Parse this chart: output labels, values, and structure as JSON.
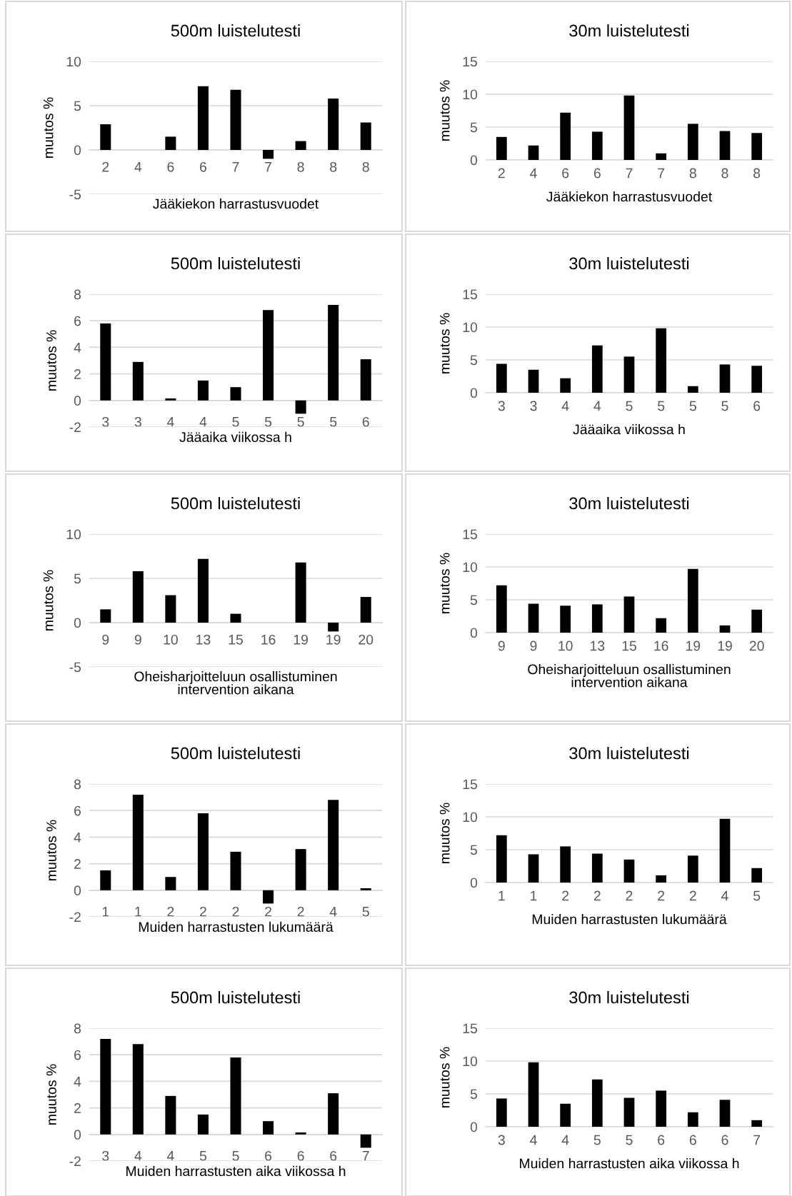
{
  "chart_data": [
    {
      "type": "bar",
      "title": "500m luistelutesti",
      "xlabel": "Jääkiekon harrastusvuodet",
      "ylabel": "muutos %",
      "categories": [
        "2",
        "4",
        "6",
        "6",
        "7",
        "7",
        "8",
        "8",
        "8"
      ],
      "values": [
        2.9,
        0,
        1.5,
        7.2,
        6.8,
        -1.0,
        1.0,
        5.8,
        3.1
      ],
      "color": "#000000",
      "ylim": [
        -5,
        10
      ],
      "yticks": [
        -5,
        0,
        5,
        10
      ],
      "grid": "y"
    },
    {
      "type": "bar",
      "title": "30m luistelutesti",
      "xlabel": "Jääkiekon harrastusvuodet",
      "ylabel": "muutos %",
      "categories": [
        "2",
        "4",
        "6",
        "6",
        "7",
        "7",
        "8",
        "8",
        "8"
      ],
      "values": [
        3.5,
        2.2,
        7.2,
        4.3,
        9.8,
        1.0,
        5.5,
        4.4,
        4.1
      ],
      "color": "#000000",
      "ylim": [
        0,
        15
      ],
      "yticks": [
        0,
        5,
        10,
        15
      ],
      "grid": "y"
    },
    {
      "type": "bar",
      "title": "500m luistelutesti",
      "xlabel": "Jääaika viikossa h",
      "ylabel": "muutos %",
      "categories": [
        "3",
        "3",
        "4",
        "4",
        "5",
        "5",
        "5",
        "5",
        "6"
      ],
      "values": [
        5.8,
        2.9,
        0.15,
        1.5,
        1.0,
        6.8,
        -1.0,
        7.2,
        3.1
      ],
      "color": "#000000",
      "ylim": [
        -2,
        8
      ],
      "yticks": [
        -2,
        0,
        2,
        4,
        6,
        8
      ],
      "grid": "y"
    },
    {
      "type": "bar",
      "title": "30m luistelutesti",
      "xlabel": "Jääaika viikossa h",
      "ylabel": "muutos %",
      "categories": [
        "3",
        "3",
        "4",
        "4",
        "5",
        "5",
        "5",
        "5",
        "6"
      ],
      "values": [
        4.4,
        3.5,
        2.2,
        7.2,
        5.5,
        9.8,
        1.0,
        4.3,
        4.1
      ],
      "color": "#000000",
      "ylim": [
        0,
        15
      ],
      "yticks": [
        0,
        5,
        10,
        15
      ],
      "grid": "y"
    },
    {
      "type": "bar",
      "title": "500m luistelutesti",
      "xlabel": "Oheisharjoitteluun osallistuminen\nintervention aikana",
      "ylabel": "muutos %",
      "categories": [
        "9",
        "9",
        "10",
        "13",
        "15",
        "16",
        "19",
        "19",
        "20"
      ],
      "values": [
        1.5,
        5.8,
        3.1,
        7.2,
        1.0,
        0,
        6.8,
        -1.0,
        2.9
      ],
      "color": "#000000",
      "ylim": [
        -5,
        10
      ],
      "yticks": [
        -5,
        0,
        5,
        10
      ],
      "grid": "y"
    },
    {
      "type": "bar",
      "title": "30m luistelutesti",
      "xlabel": "Oheisharjoitteluun osallistuminen\nintervention aikana",
      "ylabel": "muutos %",
      "categories": [
        "9",
        "9",
        "10",
        "13",
        "15",
        "16",
        "19",
        "19",
        "20"
      ],
      "values": [
        7.2,
        4.4,
        4.1,
        4.3,
        5.5,
        2.2,
        9.7,
        1.1,
        3.5
      ],
      "color": "#000000",
      "ylim": [
        0,
        15
      ],
      "yticks": [
        0,
        5,
        10,
        15
      ],
      "grid": "y"
    },
    {
      "type": "bar",
      "title": "500m luistelutesti",
      "xlabel": "Muiden harrastusten lukumäärä",
      "ylabel": "muutos %",
      "categories": [
        "1",
        "1",
        "2",
        "2",
        "2",
        "2",
        "2",
        "4",
        "5"
      ],
      "values": [
        1.5,
        7.2,
        1.0,
        5.8,
        2.9,
        -1.0,
        3.1,
        6.8,
        0.15
      ],
      "color": "#000000",
      "ylim": [
        -2,
        8
      ],
      "yticks": [
        -2,
        0,
        2,
        4,
        6,
        8
      ],
      "grid": "y"
    },
    {
      "type": "bar",
      "title": "30m luistelutesti",
      "xlabel": "Muiden harrastusten lukumäärä",
      "ylabel": "muutos %",
      "categories": [
        "1",
        "1",
        "2",
        "2",
        "2",
        "2",
        "2",
        "4",
        "5"
      ],
      "values": [
        7.2,
        4.3,
        5.5,
        4.4,
        3.5,
        1.1,
        4.1,
        9.7,
        2.2
      ],
      "color": "#000000",
      "ylim": [
        0,
        15
      ],
      "yticks": [
        0,
        5,
        10,
        15
      ],
      "grid": "y"
    },
    {
      "type": "bar",
      "title": "500m luistelutesti",
      "xlabel": "Muiden harrastusten aika viikossa h",
      "ylabel": "muutos %",
      "categories": [
        "3",
        "4",
        "4",
        "5",
        "5",
        "6",
        "6",
        "6",
        "7"
      ],
      "values": [
        7.2,
        6.8,
        2.9,
        1.5,
        5.8,
        1.0,
        0.15,
        3.1,
        -1.0
      ],
      "color": "#000000",
      "ylim": [
        -2,
        8
      ],
      "yticks": [
        -2,
        0,
        2,
        4,
        6,
        8
      ],
      "grid": "y"
    },
    {
      "type": "bar",
      "title": "30m luistelutesti",
      "xlabel": "Muiden harrastusten aika viikossa h",
      "ylabel": "muutos %",
      "categories": [
        "3",
        "4",
        "4",
        "5",
        "5",
        "6",
        "6",
        "6",
        "7"
      ],
      "values": [
        4.3,
        9.8,
        3.5,
        7.2,
        4.4,
        5.5,
        2.2,
        4.1,
        1.0
      ],
      "color": "#000000",
      "ylim": [
        0,
        15
      ],
      "yticks": [
        0,
        5,
        10,
        15
      ],
      "grid": "y"
    }
  ]
}
